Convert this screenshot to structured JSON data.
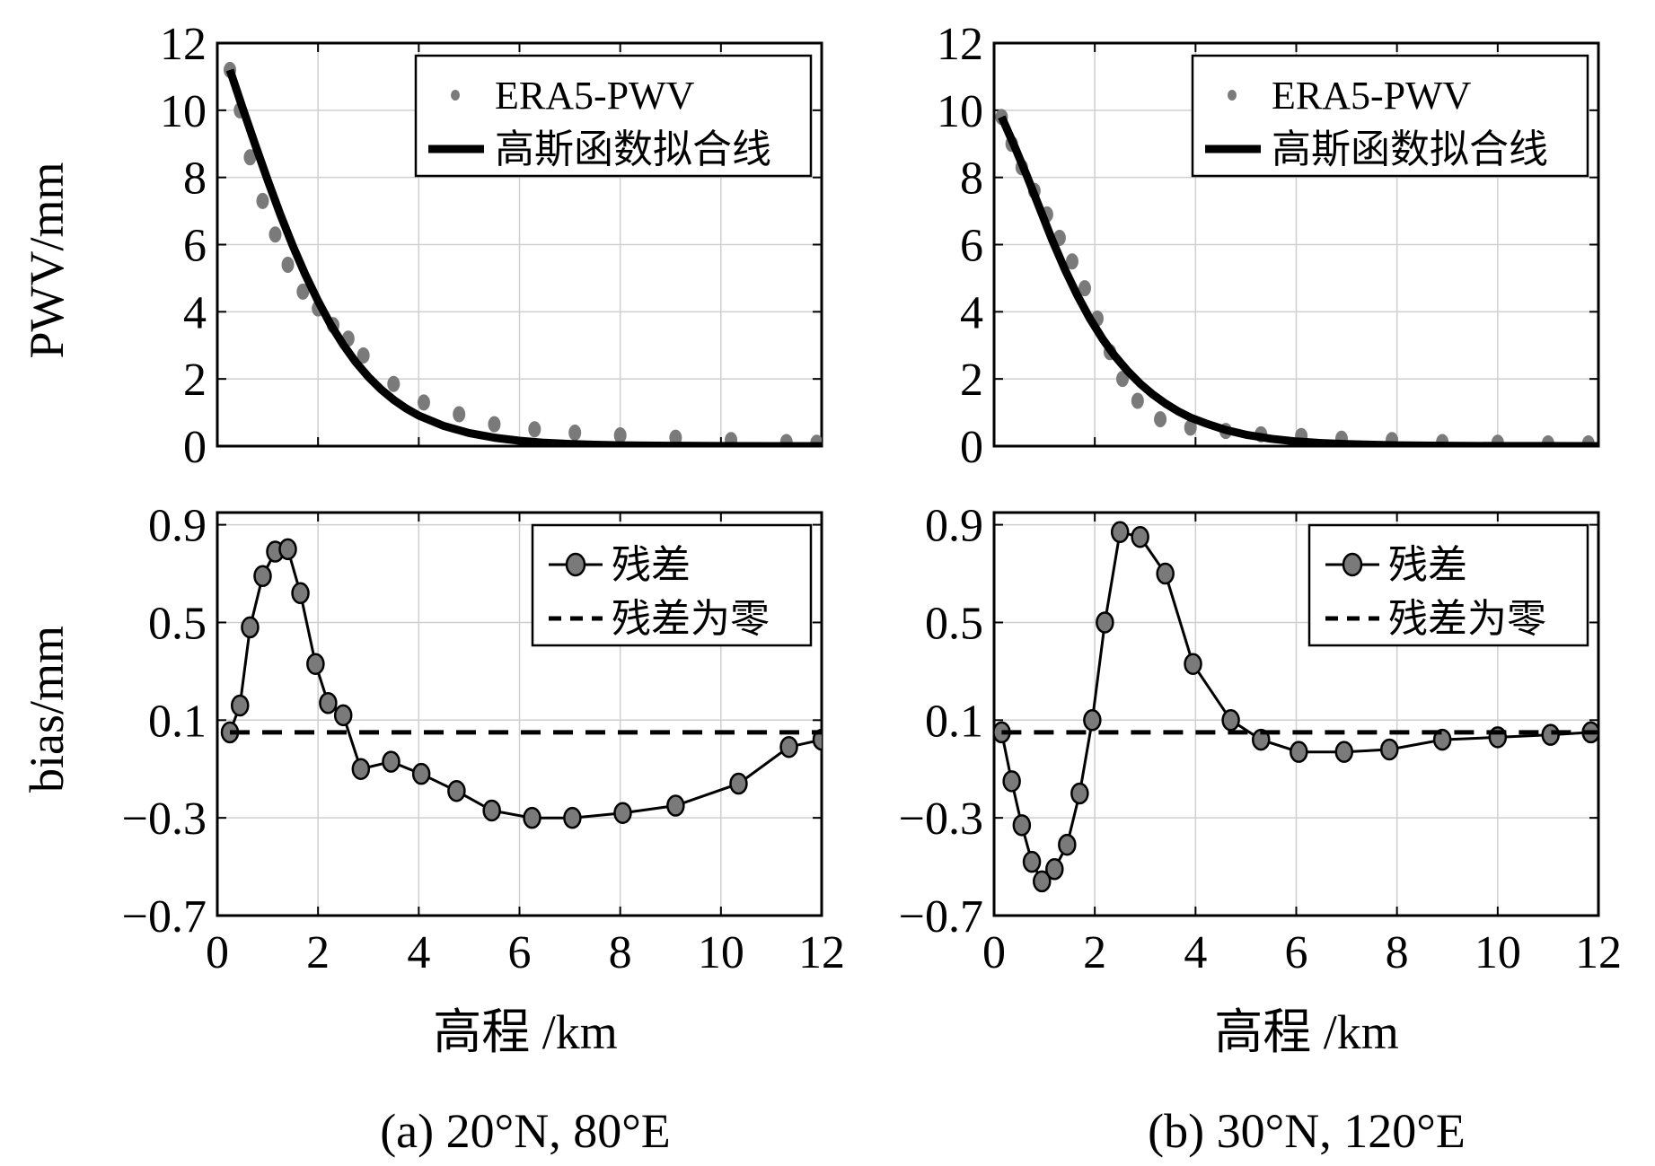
{
  "panels": [
    {
      "caption": "(a) 20°N, 80°E",
      "xlabel": "高程 /km",
      "top": {
        "ylabel": "PWV/mm",
        "yticks": [
          "0",
          "2",
          "4",
          "6",
          "8",
          "10",
          "12"
        ],
        "legend": {
          "points": "ERA5-PWV",
          "line": "高斯函数拟合线"
        }
      },
      "bottom": {
        "ylabel": "bias/mm",
        "yticks": [
          "−0.7",
          "−0.3",
          "0.1",
          "0.5",
          "0.9"
        ],
        "legend": {
          "points": "残差",
          "line": "残差为零"
        }
      },
      "xticks": [
        "0",
        "2",
        "4",
        "6",
        "8",
        "10",
        "12"
      ]
    },
    {
      "caption": "(b) 30°N, 120°E",
      "xlabel": "高程 /km",
      "top": {
        "ylabel": "",
        "yticks": [
          "0",
          "2",
          "4",
          "6",
          "8",
          "10",
          "12"
        ],
        "legend": {
          "points": "ERA5-PWV",
          "line": "高斯函数拟合线"
        }
      },
      "bottom": {
        "ylabel": "",
        "yticks": [
          "−0.7",
          "−0.3",
          "0.1",
          "0.5",
          "0.9"
        ],
        "legend": {
          "points": "残差",
          "line": "残差为零"
        }
      },
      "xticks": [
        "0",
        "2",
        "4",
        "6",
        "8",
        "10",
        "12"
      ]
    }
  ],
  "chart_data": [
    {
      "type": "scatter",
      "title": "(a) 20°N, 80°E — PWV",
      "xlabel": "高程 /km",
      "ylabel": "PWV/mm",
      "xlim": [
        0,
        12
      ],
      "ylim": [
        0,
        12
      ],
      "grid": true,
      "legend": "top-right",
      "series": [
        {
          "name": "ERA5-PWV",
          "kind": "points",
          "x": [
            0.25,
            0.45,
            0.65,
            0.9,
            1.15,
            1.4,
            1.7,
            2.0,
            2.3,
            2.6,
            2.9,
            3.5,
            4.1,
            4.8,
            5.5,
            6.3,
            7.1,
            8.0,
            9.1,
            10.2,
            11.3,
            11.9
          ],
          "y": [
            11.2,
            10.0,
            8.6,
            7.3,
            6.3,
            5.4,
            4.6,
            4.1,
            3.6,
            3.2,
            2.7,
            1.85,
            1.3,
            0.95,
            0.65,
            0.5,
            0.4,
            0.32,
            0.25,
            0.18,
            0.12,
            0.1
          ]
        },
        {
          "name": "高斯函数拟合线",
          "kind": "line",
          "x": [
            0.25,
            0.5,
            0.75,
            1.0,
            1.25,
            1.5,
            1.75,
            2.0,
            2.25,
            2.5,
            2.75,
            3.0,
            3.25,
            3.5,
            3.75,
            4.0,
            4.5,
            5.0,
            5.5,
            6.0,
            6.5,
            7.0,
            7.5,
            8.0,
            9.0,
            10.0,
            11.0,
            12.0
          ],
          "y": [
            11.2,
            10.08,
            8.98,
            7.92,
            6.9,
            5.96,
            5.1,
            4.32,
            3.62,
            3.02,
            2.5,
            2.06,
            1.69,
            1.38,
            1.12,
            0.91,
            0.6,
            0.39,
            0.25,
            0.16,
            0.1,
            0.065,
            0.04,
            0.025,
            0.01,
            0.004,
            0.001,
            0.0
          ]
        }
      ]
    },
    {
      "type": "line",
      "title": "(a) 20°N, 80°E — bias",
      "xlabel": "高程 /km",
      "ylabel": "bias/mm",
      "xlim": [
        0,
        12
      ],
      "ylim": [
        -0.7,
        0.95
      ],
      "grid": true,
      "legend": "top-right",
      "series": [
        {
          "name": "残差",
          "kind": "line-marker",
          "x": [
            0.25,
            0.45,
            0.65,
            0.9,
            1.15,
            1.4,
            1.65,
            1.95,
            2.2,
            2.5,
            2.85,
            3.45,
            4.05,
            4.75,
            5.45,
            6.25,
            7.05,
            8.05,
            9.1,
            10.35,
            11.35,
            12.0
          ],
          "y": [
            0.05,
            0.16,
            0.48,
            0.69,
            0.79,
            0.8,
            0.62,
            0.33,
            0.17,
            0.12,
            -0.1,
            -0.07,
            -0.12,
            -0.19,
            -0.27,
            -0.3,
            -0.3,
            -0.28,
            -0.25,
            -0.16,
            -0.01,
            0.02
          ]
        },
        {
          "name": "残差为零",
          "kind": "dashed",
          "x": [
            0.25,
            12.0
          ],
          "y": [
            0.05,
            0.05
          ]
        }
      ]
    },
    {
      "type": "scatter",
      "title": "(b) 30°N, 120°E — PWV",
      "xlabel": "高程 /km",
      "ylabel": "PWV/mm",
      "xlim": [
        0,
        12
      ],
      "ylim": [
        0,
        12
      ],
      "grid": true,
      "legend": "top-right",
      "series": [
        {
          "name": "ERA5-PWV",
          "kind": "points",
          "x": [
            0.15,
            0.35,
            0.55,
            0.8,
            1.05,
            1.3,
            1.55,
            1.8,
            2.05,
            2.3,
            2.55,
            2.85,
            3.3,
            3.9,
            4.6,
            5.3,
            6.1,
            6.9,
            7.9,
            8.9,
            10.0,
            11.0,
            11.8
          ],
          "y": [
            9.8,
            9.0,
            8.3,
            7.6,
            6.9,
            6.2,
            5.5,
            4.7,
            3.8,
            2.8,
            2.0,
            1.35,
            0.8,
            0.55,
            0.45,
            0.35,
            0.3,
            0.22,
            0.18,
            0.12,
            0.1,
            0.08,
            0.08
          ]
        },
        {
          "name": "高斯函数拟合线",
          "kind": "line",
          "x": [
            0.15,
            0.4,
            0.65,
            0.9,
            1.15,
            1.4,
            1.65,
            1.9,
            2.15,
            2.4,
            2.65,
            2.9,
            3.15,
            3.4,
            3.65,
            3.9,
            4.2,
            4.6,
            5.0,
            5.5,
            6.0,
            6.5,
            7.0,
            8.0,
            9.0,
            10.0,
            11.0,
            12.0
          ],
          "y": [
            9.8,
            8.95,
            8.05,
            7.1,
            6.15,
            5.28,
            4.5,
            3.8,
            3.2,
            2.68,
            2.24,
            1.86,
            1.54,
            1.27,
            1.04,
            0.85,
            0.68,
            0.48,
            0.34,
            0.22,
            0.14,
            0.09,
            0.06,
            0.025,
            0.01,
            0.004,
            0.002,
            0.0
          ]
        }
      ]
    },
    {
      "type": "line",
      "title": "(b) 30°N, 120°E — bias",
      "xlabel": "高程 /km",
      "ylabel": "bias/mm",
      "xlim": [
        0,
        12
      ],
      "ylim": [
        -0.7,
        0.95
      ],
      "grid": true,
      "legend": "top-right",
      "series": [
        {
          "name": "残差",
          "kind": "line-marker",
          "x": [
            0.15,
            0.35,
            0.55,
            0.75,
            0.95,
            1.2,
            1.45,
            1.7,
            1.95,
            2.2,
            2.5,
            2.9,
            3.4,
            3.95,
            4.7,
            5.3,
            6.05,
            6.95,
            7.85,
            8.9,
            10.0,
            11.05,
            11.85
          ],
          "y": [
            0.05,
            -0.15,
            -0.33,
            -0.48,
            -0.56,
            -0.51,
            -0.41,
            -0.2,
            0.1,
            0.5,
            0.87,
            0.85,
            0.7,
            0.33,
            0.1,
            0.02,
            -0.03,
            -0.03,
            -0.02,
            0.02,
            0.03,
            0.04,
            0.05
          ]
        },
        {
          "name": "残差为零",
          "kind": "dashed",
          "x": [
            0.15,
            12.0
          ],
          "y": [
            0.05,
            0.05
          ]
        }
      ]
    }
  ]
}
